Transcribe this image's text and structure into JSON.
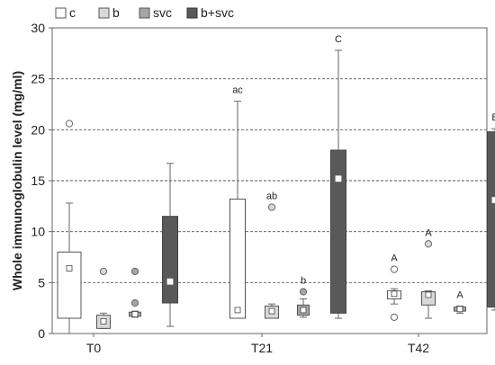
{
  "chart_data": {
    "type": "boxplot",
    "ylabel": "Whole immunoglobulin level (mg/ml)",
    "ylim": [
      0,
      30
    ],
    "yticks": [
      0,
      5,
      10,
      15,
      20,
      25,
      30
    ],
    "grid": "horizontal dashed",
    "legend": {
      "placement": "top-left",
      "entries": [
        {
          "label": "c",
          "fill": "#ffffff"
        },
        {
          "label": "b",
          "fill": "#d9d9d9"
        },
        {
          "label": "svc",
          "fill": "#a6a6a6"
        },
        {
          "label": "b+svc",
          "fill": "#595959"
        }
      ]
    },
    "categories": [
      "T0",
      "T21",
      "T42"
    ],
    "groups": [
      {
        "category": "T0",
        "boxes": [
          {
            "series": "c",
            "whisker_low": 0,
            "q1": 1.5,
            "q3": 8.0,
            "whisker_high": 12.8,
            "mean": 6.4,
            "outliers": [
              20.6
            ],
            "letter": ""
          },
          {
            "series": "b",
            "whisker_low": 0.5,
            "q1": 0.5,
            "q3": 1.8,
            "whisker_high": 2.0,
            "mean": 1.2,
            "outliers": [
              6.1
            ],
            "letter": ""
          },
          {
            "series": "svc",
            "whisker_low": 1.6,
            "q1": 1.7,
            "q3": 2.1,
            "whisker_high": 2.2,
            "mean": 1.9,
            "outliers": [
              6.1,
              3.0
            ],
            "letter": ""
          },
          {
            "series": "b+svc",
            "whisker_low": 0.7,
            "q1": 3.0,
            "q3": 11.5,
            "whisker_high": 16.7,
            "mean": 5.1,
            "outliers": [],
            "letter": ""
          }
        ]
      },
      {
        "category": "T21",
        "boxes": [
          {
            "series": "c",
            "whisker_low": 1.5,
            "q1": 1.5,
            "q3": 13.2,
            "whisker_high": 22.8,
            "mean": 2.3,
            "outliers": [],
            "letter": "ac"
          },
          {
            "series": "b",
            "whisker_low": 1.5,
            "q1": 1.5,
            "q3": 2.7,
            "whisker_high": 2.9,
            "mean": 2.2,
            "outliers": [
              12.4
            ],
            "letter": "ab"
          },
          {
            "series": "svc",
            "whisker_low": 1.6,
            "q1": 1.8,
            "q3": 2.8,
            "whisker_high": 3.4,
            "mean": 2.3,
            "outliers": [
              4.1
            ],
            "letter": "b"
          },
          {
            "series": "b+svc",
            "whisker_low": 1.5,
            "q1": 2.0,
            "q3": 18.0,
            "whisker_high": 27.8,
            "mean": 15.2,
            "outliers": [],
            "letter": "C"
          }
        ]
      },
      {
        "category": "T42",
        "boxes": [
          {
            "series": "c",
            "whisker_low": 2.9,
            "q1": 3.4,
            "q3": 4.2,
            "whisker_high": 4.4,
            "mean": 3.9,
            "outliers": [
              6.3,
              1.6
            ],
            "letter": "A"
          },
          {
            "series": "b",
            "whisker_low": 1.5,
            "q1": 2.8,
            "q3": 4.1,
            "whisker_high": 4.2,
            "mean": 3.8,
            "outliers": [
              8.8
            ],
            "letter": "A"
          },
          {
            "series": "svc",
            "whisker_low": 2.0,
            "q1": 2.2,
            "q3": 2.6,
            "whisker_high": 2.7,
            "mean": 2.4,
            "outliers": [],
            "letter": "A"
          },
          {
            "series": "b+svc",
            "whisker_low": 2.3,
            "q1": 2.6,
            "q3": 19.8,
            "whisker_high": 20.1,
            "mean": 13.1,
            "outliers": [],
            "letter": "B"
          }
        ]
      }
    ]
  }
}
